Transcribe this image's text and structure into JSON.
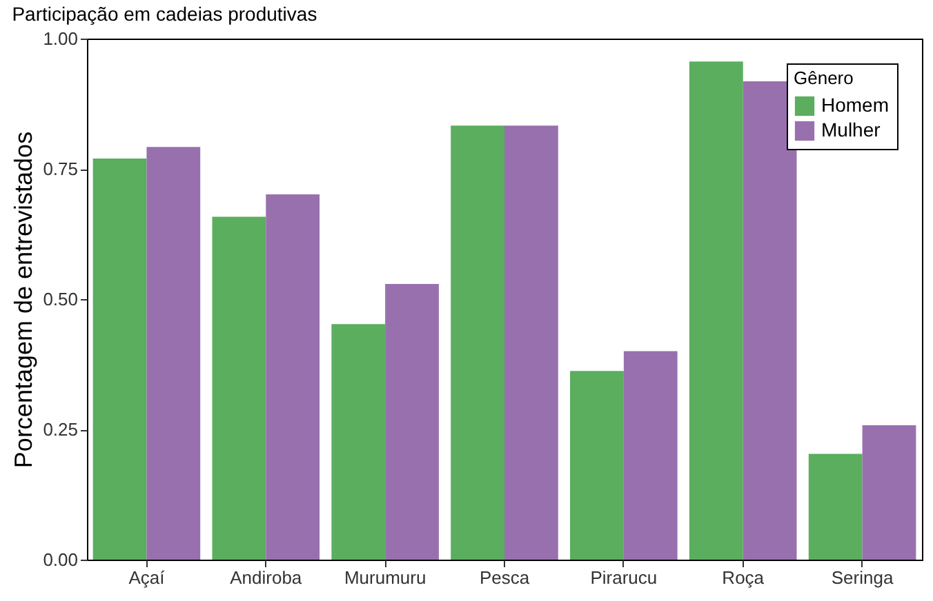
{
  "chart_data": {
    "type": "bar",
    "title": "Participação em cadeias produtivas",
    "ylabel": "Porcentagem de entrevistados",
    "legend_title": "Gênero",
    "categories": [
      "Açaí",
      "Andiroba",
      "Murumuru",
      "Pesca",
      "Pirarucu",
      "Roça",
      "Seringa"
    ],
    "series": [
      {
        "name": "Homem",
        "color": "#5aae5e",
        "values": [
          0.77,
          0.658,
          0.452,
          0.833,
          0.362,
          0.956,
          0.203
        ]
      },
      {
        "name": "Mulher",
        "color": "#9970ae",
        "values": [
          0.792,
          0.701,
          0.529,
          0.833,
          0.4,
          0.918,
          0.258
        ]
      }
    ],
    "ylim": [
      0,
      1
    ],
    "yticks": [
      {
        "value": 0,
        "label": "0.00"
      },
      {
        "value": 0.25,
        "label": "0.25"
      },
      {
        "value": 0.5,
        "label": "0.50"
      },
      {
        "value": 0.75,
        "label": "0.75"
      },
      {
        "value": 1,
        "label": "1.00"
      }
    ],
    "grid": false,
    "legend": "top right"
  }
}
